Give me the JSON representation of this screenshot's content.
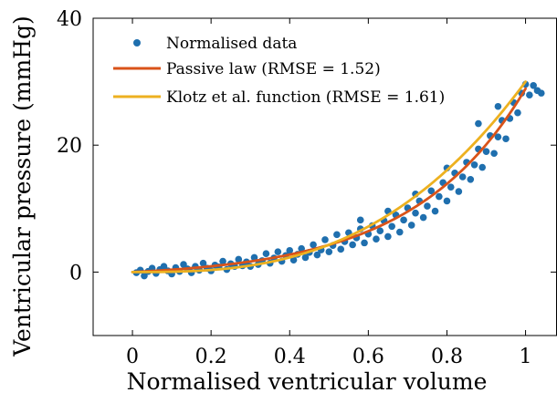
{
  "chart_data": {
    "type": "scatter",
    "xlabel": "Normalised ventricular volume",
    "ylabel": "Ventricular pressure (mmHg)",
    "xlim": [
      -0.1,
      1.08
    ],
    "ylim": [
      -10,
      40
    ],
    "xticks": [
      0,
      0.2,
      0.4,
      0.6,
      0.8,
      1
    ],
    "xtick_labels": [
      "0",
      "0.2",
      "0.4",
      "0.6",
      "0.8",
      "1"
    ],
    "yticks": [
      0,
      20,
      40
    ],
    "ytick_labels": [
      "0",
      "20",
      "40"
    ],
    "grid": false,
    "legend_position": "top-left",
    "series": [
      {
        "name": "Normalised data",
        "kind": "scatter",
        "color": "#1f6fae",
        "points": [
          [
            0.01,
            -0.1
          ],
          [
            0.02,
            0.3
          ],
          [
            0.03,
            -0.6
          ],
          [
            0.04,
            0.1
          ],
          [
            0.05,
            0.6
          ],
          [
            0.06,
            -0.2
          ],
          [
            0.07,
            0.4
          ],
          [
            0.08,
            0.9
          ],
          [
            0.09,
            0.2
          ],
          [
            0.1,
            -0.3
          ],
          [
            0.11,
            0.7
          ],
          [
            0.12,
            0.1
          ],
          [
            0.13,
            1.2
          ],
          [
            0.14,
            0.5
          ],
          [
            0.15,
            -0.1
          ],
          [
            0.16,
            0.9
          ],
          [
            0.17,
            0.3
          ],
          [
            0.18,
            1.4
          ],
          [
            0.19,
            0.6
          ],
          [
            0.2,
            0.2
          ],
          [
            0.21,
            1.1
          ],
          [
            0.22,
            0.8
          ],
          [
            0.23,
            1.7
          ],
          [
            0.24,
            0.4
          ],
          [
            0.25,
            1.3
          ],
          [
            0.26,
            0.9
          ],
          [
            0.27,
            2.0
          ],
          [
            0.28,
            1.0
          ],
          [
            0.29,
            1.6
          ],
          [
            0.3,
            0.9
          ],
          [
            0.31,
            2.3
          ],
          [
            0.32,
            1.2
          ],
          [
            0.33,
            1.8
          ],
          [
            0.34,
            2.9
          ],
          [
            0.35,
            1.4
          ],
          [
            0.36,
            2.2
          ],
          [
            0.37,
            3.2
          ],
          [
            0.38,
            1.7
          ],
          [
            0.39,
            2.6
          ],
          [
            0.4,
            3.4
          ],
          [
            0.41,
            1.9
          ],
          [
            0.42,
            2.8
          ],
          [
            0.43,
            3.7
          ],
          [
            0.44,
            2.3
          ],
          [
            0.45,
            3.1
          ],
          [
            0.46,
            4.3
          ],
          [
            0.47,
            2.7
          ],
          [
            0.48,
            3.5
          ],
          [
            0.49,
            5.1
          ],
          [
            0.5,
            3.2
          ],
          [
            0.51,
            4.2
          ],
          [
            0.52,
            5.9
          ],
          [
            0.53,
            3.6
          ],
          [
            0.54,
            4.8
          ],
          [
            0.55,
            6.2
          ],
          [
            0.56,
            4.3
          ],
          [
            0.57,
            5.4
          ],
          [
            0.58,
            6.8
          ],
          [
            0.59,
            4.6
          ],
          [
            0.6,
            6.0
          ],
          [
            0.61,
            7.3
          ],
          [
            0.62,
            5.2
          ],
          [
            0.63,
            6.5
          ],
          [
            0.64,
            8.1
          ],
          [
            0.65,
            5.6
          ],
          [
            0.66,
            7.2
          ],
          [
            0.67,
            9.0
          ],
          [
            0.68,
            6.3
          ],
          [
            0.69,
            8.2
          ],
          [
            0.7,
            10.1
          ],
          [
            0.71,
            7.4
          ],
          [
            0.72,
            9.3
          ],
          [
            0.73,
            11.2
          ],
          [
            0.74,
            8.6
          ],
          [
            0.75,
            10.4
          ],
          [
            0.76,
            12.8
          ],
          [
            0.77,
            9.6
          ],
          [
            0.78,
            11.9
          ],
          [
            0.79,
            14.1
          ],
          [
            0.8,
            11.2
          ],
          [
            0.81,
            13.4
          ],
          [
            0.82,
            15.6
          ],
          [
            0.83,
            12.7
          ],
          [
            0.84,
            15.0
          ],
          [
            0.85,
            17.3
          ],
          [
            0.86,
            14.6
          ],
          [
            0.87,
            16.9
          ],
          [
            0.88,
            19.4
          ],
          [
            0.89,
            16.5
          ],
          [
            0.9,
            19.0
          ],
          [
            0.91,
            21.5
          ],
          [
            0.92,
            18.7
          ],
          [
            0.93,
            21.3
          ],
          [
            0.94,
            23.9
          ],
          [
            0.95,
            21.0
          ],
          [
            0.96,
            24.2
          ],
          [
            0.97,
            26.7
          ],
          [
            0.98,
            25.1
          ],
          [
            0.99,
            28.2
          ],
          [
            1.0,
            29.6
          ],
          [
            1.01,
            27.9
          ],
          [
            1.02,
            29.4
          ],
          [
            1.03,
            28.6
          ],
          [
            1.04,
            28.2
          ],
          [
            0.58,
            8.2
          ],
          [
            0.65,
            9.6
          ],
          [
            0.72,
            12.3
          ],
          [
            0.8,
            16.4
          ],
          [
            0.88,
            23.4
          ],
          [
            0.93,
            26.1
          ]
        ]
      },
      {
        "name": "Passive law (RMSE = 1.52)",
        "kind": "line",
        "color": "#d95319",
        "model": "exponential",
        "a": 0.9,
        "b": 3.5,
        "x_range": [
          0,
          1
        ]
      },
      {
        "name": "Klotz et al. function (RMSE = 1.61)",
        "kind": "line",
        "color": "#edb120",
        "model": "power",
        "a": 30,
        "n": 2.8,
        "x_range": [
          0,
          1
        ]
      }
    ]
  }
}
